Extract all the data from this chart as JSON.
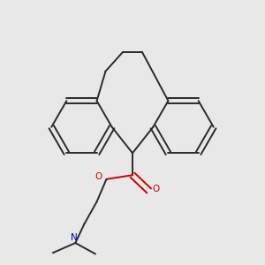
{
  "bg": "#e8e8e8",
  "bc": "#2a2a2a",
  "oc": "#cc0000",
  "nc": "#0000cc",
  "lw": 1.4,
  "lw_dbl": 1.4,
  "figsize": [
    3.0,
    3.0
  ],
  "dpi": 100,
  "xlim": [
    0.05,
    0.95
  ],
  "ylim": [
    0.02,
    0.98
  ]
}
